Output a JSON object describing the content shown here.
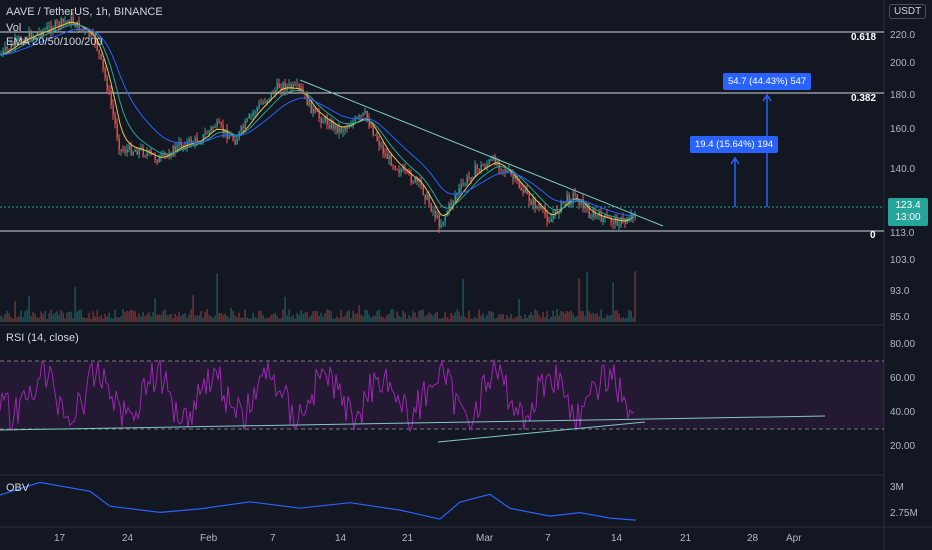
{
  "header": {
    "title": "AAVE / TetherUS, 1h, BINANCE",
    "vol": "Vol",
    "ema": "EMA 20/50/100/200"
  },
  "currency": "USDT",
  "price_axis": [
    "220.0",
    "200.0",
    "180.0",
    "160.0",
    "140.0",
    "113.0",
    "103.0",
    "93.0",
    "85.0"
  ],
  "fib_labels": {
    "f618": "0.618",
    "f382": "0.382",
    "f0": "0"
  },
  "measure": {
    "small": "19.4 (15.64%) 194",
    "large": "54.7 (44.43%) 547"
  },
  "last_price": {
    "price": "123.4",
    "time": "13:00"
  },
  "rsi": {
    "label": "RSI (14, close)",
    "axis": [
      "80.00",
      "60.00",
      "40.00",
      "20.00"
    ]
  },
  "obv": {
    "label": "OBV",
    "axis": [
      "3M",
      "2.75M"
    ]
  },
  "time_axis": [
    "17",
    "24",
    "Feb",
    "7",
    "14",
    "21",
    "Mar",
    "7",
    "14",
    "21",
    "28",
    "Apr"
  ],
  "colors": {
    "bg": "#131722",
    "up": "#26a69a",
    "down": "#ef5350",
    "rsi": "#9c27b0",
    "obv": "#2962ff",
    "box": "#2962ff"
  }
}
